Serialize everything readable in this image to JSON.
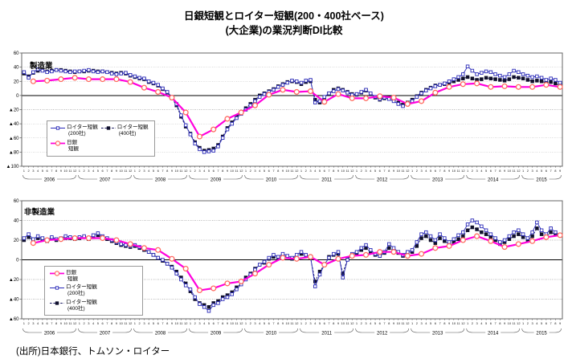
{
  "page": {
    "title_line1": "日銀短観とロイター短観(200・400社ベース)",
    "title_line2": "(大企業)の業況判断DI比較",
    "source": "(出所)日本銀行、トムソン・ロイター"
  },
  "colors": {
    "reuters200_line": "#2a2ab8",
    "reuters400_line": "#15155e",
    "reuters400_marker": "#10102c",
    "boj_line": "#ff00dd",
    "boj_marker_ring": "#ff6a5f",
    "grid": "#bbbbbb",
    "zero_line": "#000000",
    "plot_border": "#666666"
  },
  "chart_data": [
    {
      "type": "line",
      "title": "製造業",
      "ylim": [
        -100,
        60
      ],
      "yticks": [
        60,
        40,
        20,
        0,
        -20,
        -40,
        -60,
        -80,
        -100
      ],
      "negative_prefix": "▲",
      "grid": true,
      "legend_position": "inside-lower-left",
      "x_axis": {
        "years": [
          "2006",
          "2007",
          "2008",
          "2009",
          "2010",
          "2011",
          "2012",
          "2013",
          "2014",
          "2015"
        ],
        "months_per_year": 12,
        "last_year_months": 9,
        "month_label_pattern": "1-12"
      },
      "series": [
        {
          "id": "reuters200",
          "name": "ロイター短観",
          "name2": "(200社)",
          "cadence": "monthly",
          "marker": "open-square",
          "dash": "solid",
          "values": [
            33,
            25,
            33,
            37,
            35,
            33,
            34,
            36,
            35,
            34,
            33,
            34,
            34,
            35,
            36,
            34,
            33,
            34,
            33,
            31,
            30,
            31,
            32,
            29,
            27,
            25,
            24,
            20,
            18,
            15,
            10,
            5,
            -2,
            -12,
            -28,
            -42,
            -55,
            -68,
            -76,
            -80,
            -79,
            -78,
            -72,
            -60,
            -48,
            -40,
            -32,
            -26,
            -20,
            -14,
            -8,
            -2,
            2,
            5,
            8,
            12,
            15,
            18,
            21,
            20,
            18,
            21,
            22,
            -10,
            -8,
            -2,
            3,
            6,
            9,
            7,
            4,
            1,
            2,
            5,
            8,
            3,
            -2,
            -5,
            -3,
            -5,
            -8,
            -12,
            -15,
            -12,
            -8,
            -2,
            3,
            7,
            10,
            13,
            15,
            17,
            20,
            23,
            26,
            30,
            41,
            35,
            30,
            32,
            34,
            33,
            30,
            28,
            26,
            30,
            35,
            33,
            30,
            28,
            26,
            27,
            25,
            22,
            24,
            22,
            18
          ]
        },
        {
          "id": "reuters400",
          "name": "ロイター短観",
          "name2": "(400社)",
          "cadence": "monthly",
          "marker": "filled-square",
          "dash": "dashed",
          "values": [
            31,
            27,
            32,
            35,
            36,
            34,
            35,
            36,
            36,
            35,
            34,
            33,
            34,
            34,
            35,
            35,
            34,
            34,
            33,
            32,
            31,
            32,
            31,
            28,
            26,
            24,
            23,
            19,
            17,
            14,
            9,
            4,
            -4,
            -14,
            -30,
            -44,
            -54,
            -66,
            -74,
            -78,
            -77,
            -75,
            -70,
            -58,
            -46,
            -38,
            -30,
            -24,
            -18,
            -12,
            -6,
            0,
            3,
            6,
            9,
            13,
            16,
            19,
            20,
            19,
            16,
            19,
            20,
            -6,
            -10,
            -3,
            3,
            8,
            10,
            8,
            5,
            2,
            1,
            4,
            7,
            2,
            -3,
            -6,
            -4,
            -3,
            -6,
            -10,
            -13,
            -10,
            -6,
            -1,
            4,
            8,
            11,
            14,
            15,
            16,
            18,
            20,
            22,
            24,
            26,
            24,
            22,
            23,
            25,
            24,
            23,
            22,
            21,
            23,
            26,
            25,
            24,
            22,
            20,
            21,
            20,
            18,
            19,
            17,
            14
          ]
        },
        {
          "id": "boj",
          "name": "日銀",
          "name2": "短観",
          "cadence": "quarterly",
          "marker": "open-circle",
          "dash": "solid",
          "values": [
            20,
            21,
            23,
            25,
            23,
            23,
            23,
            19,
            11,
            5,
            -3,
            -24,
            -58,
            -48,
            -33,
            -24,
            -14,
            1,
            8,
            5,
            6,
            -9,
            2,
            -4,
            -4,
            -1,
            -3,
            -12,
            -8,
            4,
            12,
            16,
            17,
            12,
            13,
            12,
            12,
            15,
            12
          ]
        }
      ]
    },
    {
      "type": "line",
      "title": "非製造業",
      "ylim": [
        -60,
        60
      ],
      "yticks": [
        60,
        40,
        20,
        0,
        -20,
        -40,
        -60
      ],
      "negative_prefix": "▲",
      "grid": true,
      "legend_position": "inside-lower-left",
      "x_axis": {
        "years": [
          "2006",
          "2007",
          "2008",
          "2009",
          "2010",
          "2011",
          "2012",
          "2013",
          "2014",
          "2015"
        ],
        "months_per_year": 12,
        "last_year_months": 9,
        "month_label_pattern": "1-12"
      },
      "series": [
        {
          "id": "reuters200",
          "name": "ロイター短観",
          "name2": "(200社)",
          "cadence": "monthly",
          "marker": "open-square",
          "dash": "solid",
          "values": [
            22,
            26,
            21,
            24,
            22,
            20,
            23,
            21,
            22,
            24,
            23,
            22,
            23,
            24,
            22,
            25,
            27,
            24,
            22,
            20,
            18,
            16,
            15,
            14,
            15,
            13,
            11,
            8,
            5,
            2,
            0,
            -4,
            -8,
            -14,
            -20,
            -26,
            -30,
            -38,
            -45,
            -48,
            -52,
            -46,
            -44,
            -40,
            -38,
            -35,
            -30,
            -25,
            -20,
            -15,
            -10,
            -5,
            -2,
            2,
            5,
            3,
            6,
            4,
            2,
            5,
            8,
            5,
            3,
            -27,
            -15,
            -5,
            2,
            6,
            8,
            -18,
            0,
            6,
            8,
            12,
            15,
            10,
            6,
            4,
            8,
            16,
            12,
            8,
            5,
            8,
            10,
            18,
            26,
            28,
            24,
            20,
            26,
            22,
            18,
            21,
            25,
            28,
            36,
            40,
            38,
            34,
            30,
            26,
            22,
            18,
            20,
            24,
            28,
            30,
            26,
            22,
            28,
            38,
            30,
            26,
            32,
            28,
            25
          ]
        },
        {
          "id": "reuters400",
          "name": "ロイター短観",
          "name2": "(400社)",
          "cadence": "monthly",
          "marker": "filled-square",
          "dash": "dashed",
          "values": [
            20,
            23,
            20,
            22,
            21,
            19,
            22,
            20,
            21,
            22,
            22,
            21,
            22,
            23,
            21,
            23,
            25,
            23,
            21,
            19,
            17,
            15,
            14,
            13,
            14,
            12,
            10,
            8,
            5,
            2,
            -1,
            -4,
            -7,
            -12,
            -18,
            -24,
            -32,
            -40,
            -44,
            -46,
            -48,
            -44,
            -42,
            -38,
            -36,
            -33,
            -28,
            -24,
            -18,
            -14,
            -9,
            -5,
            -3,
            1,
            3,
            2,
            4,
            3,
            1,
            4,
            6,
            4,
            2,
            -22,
            -12,
            -5,
            3,
            5,
            6,
            -14,
            1,
            5,
            7,
            10,
            12,
            8,
            5,
            4,
            7,
            12,
            9,
            7,
            4,
            7,
            8,
            14,
            22,
            24,
            20,
            17,
            22,
            19,
            16,
            18,
            21,
            24,
            30,
            33,
            31,
            28,
            26,
            23,
            20,
            16,
            18,
            21,
            24,
            26,
            23,
            20,
            24,
            32,
            26,
            23,
            28,
            26,
            25
          ]
        },
        {
          "id": "boj",
          "name": "日銀",
          "name2": "短観",
          "cadence": "quarterly",
          "marker": "open-circle",
          "dash": "solid",
          "values": [
            17,
            20,
            21,
            22,
            22,
            22,
            20,
            16,
            12,
            10,
            1,
            -9,
            -31,
            -29,
            -24,
            -22,
            -14,
            -5,
            2,
            1,
            3,
            -5,
            1,
            4,
            5,
            8,
            8,
            4,
            6,
            12,
            14,
            20,
            24,
            19,
            13,
            16,
            19,
            23,
            25
          ]
        }
      ]
    }
  ]
}
